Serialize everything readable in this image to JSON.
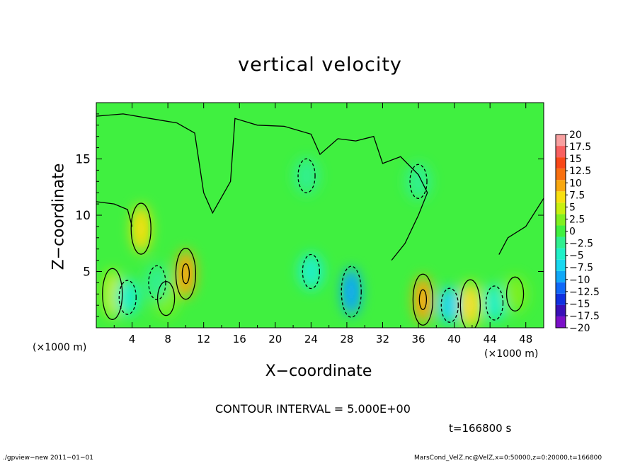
{
  "colors": {
    "background": "#ffffff",
    "contour_line": "#000000",
    "palette": [
      "#7b10c8",
      "#3a10b8",
      "#1030e0",
      "#1068f8",
      "#10a8f8",
      "#18d8f0",
      "#20f0c8",
      "#30f090",
      "#40f040",
      "#80f020",
      "#c8f010",
      "#f8e010",
      "#f8a810",
      "#f87010",
      "#f84818",
      "#f86060",
      "#f8a0a0"
    ]
  },
  "chart_data": {
    "type": "heatmap",
    "title": "vertical velocity",
    "xlabel": "X−coordinate",
    "ylabel": "Z−coordinate",
    "x_unit_label": "(×1000 m)",
    "xlim": [
      0,
      50
    ],
    "ylim": [
      0,
      20
    ],
    "x_ticks": [
      4,
      8,
      12,
      16,
      20,
      24,
      28,
      32,
      36,
      40,
      44,
      48
    ],
    "x_tick_labels": [
      "4",
      "8",
      "12",
      "16",
      "20",
      "24",
      "28",
      "32",
      "36",
      "40",
      "44",
      "48"
    ],
    "y_ticks": [
      5,
      10,
      15
    ],
    "y_tick_labels": [
      "5",
      "10",
      "15"
    ],
    "colorbar": {
      "levels": [
        -20,
        -17.5,
        -15,
        -12.5,
        -10,
        -7.5,
        -5,
        -2.5,
        0,
        2.5,
        5,
        7.5,
        10,
        12.5,
        15,
        17.5,
        20
      ],
      "labels": [
        "20",
        "17.5",
        "15",
        "12.5",
        "10",
        "7.5",
        "5",
        "2.5",
        "0",
        "−2.5",
        "−5",
        "−7.5",
        "−10",
        "−12.5",
        "−15",
        "−17.5",
        "−20"
      ]
    },
    "features": [
      {
        "x": 1.8,
        "z": 3.0,
        "value": 6.5
      },
      {
        "x": 5.0,
        "z": 8.8,
        "value": 9.5
      },
      {
        "x": 7.8,
        "z": 2.6,
        "value": 4.0
      },
      {
        "x": 10.0,
        "z": 4.8,
        "value": 11.0
      },
      {
        "x": 3.5,
        "z": 2.7,
        "value": -5.0
      },
      {
        "x": 6.8,
        "z": 4.0,
        "value": -2.0
      },
      {
        "x": 24.0,
        "z": 5.0,
        "value": -5.0
      },
      {
        "x": 28.5,
        "z": 3.2,
        "value": -8.5
      },
      {
        "x": 36.5,
        "z": 2.5,
        "value": 11.0
      },
      {
        "x": 39.5,
        "z": 2.0,
        "value": -5.5
      },
      {
        "x": 41.8,
        "z": 2.0,
        "value": 8.5
      },
      {
        "x": 44.5,
        "z": 2.2,
        "value": -3.0
      },
      {
        "x": 46.8,
        "z": 3.0,
        "value": 2.5
      },
      {
        "x": 23.5,
        "z": 13.5,
        "value": -1.5
      },
      {
        "x": 36.0,
        "z": 13.0,
        "value": -0.8
      }
    ],
    "contour_interval_text": "CONTOUR INTERVAL = 5.000E+00",
    "time_text": "t=166800 s",
    "grid": false
  },
  "footer": {
    "left": "./gpview−new   2011−01−01",
    "right": "MarsCond_VelZ.nc@VelZ,x=0:50000,z=0:20000,t=166800"
  }
}
